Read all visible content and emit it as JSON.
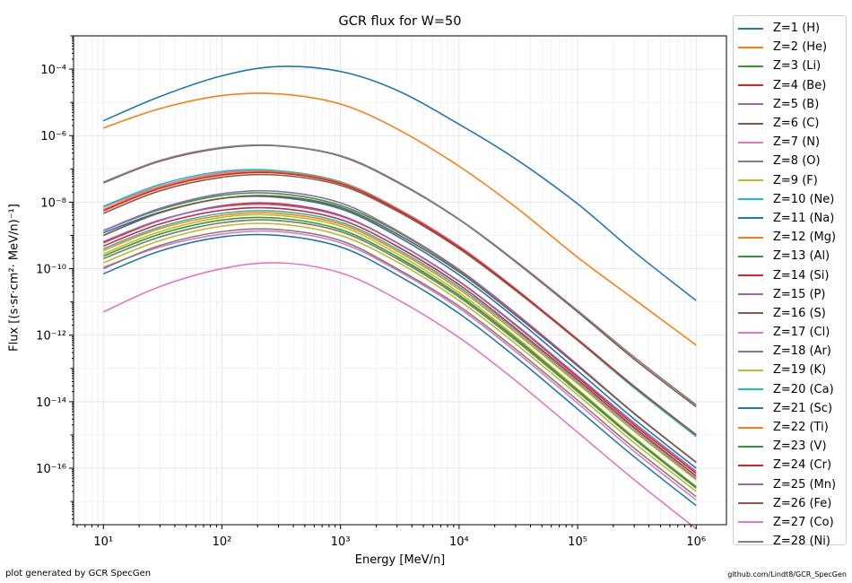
{
  "chart_data": {
    "type": "line",
    "title": "GCR flux for W=50",
    "xlabel": "Energy [MeV/n]",
    "ylabel": "Flux [(s·sr·cm²· MeV/n)⁻¹]",
    "x_scale": "log",
    "y_scale": "log",
    "xlim": [
      5.6,
      1800000
    ],
    "ylim": [
      2e-18,
      0.001
    ],
    "x_ticks": [
      {
        "value": 10,
        "label": "10¹"
      },
      {
        "value": 100,
        "label": "10²"
      },
      {
        "value": 1000,
        "label": "10³"
      },
      {
        "value": 10000,
        "label": "10⁴"
      },
      {
        "value": 100000,
        "label": "10⁵"
      },
      {
        "value": 1000000,
        "label": "10⁶"
      }
    ],
    "y_ticks": [
      {
        "value": 1e-16,
        "label": "10⁻¹⁶"
      },
      {
        "value": 1e-14,
        "label": "10⁻¹⁴"
      },
      {
        "value": 1e-12,
        "label": "10⁻¹²"
      },
      {
        "value": 1e-10,
        "label": "10⁻¹⁰"
      },
      {
        "value": 1e-08,
        "label": "10⁻⁸"
      },
      {
        "value": 1e-06,
        "label": "10⁻⁶"
      },
      {
        "value": 0.0001,
        "label": "10⁻⁴"
      }
    ],
    "grid": true,
    "legend_position": "outside-right",
    "x": [
      10,
      30,
      100,
      300,
      1000,
      3000,
      10000,
      30000,
      100000,
      300000,
      1000000
    ],
    "series": [
      {
        "name": "Z=1 (H)",
        "color": "#1f77b4",
        "values": [
          2.8e-06,
          1.5e-05,
          6.3e-05,
          0.00012,
          8.5e-05,
          2.3e-05,
          2.2e-06,
          2e-07,
          8.9e-09,
          3.2e-10,
          1.1e-11
        ]
      },
      {
        "name": "Z=2 (He)",
        "color": "#ff7f0e",
        "values": [
          1.7e-06,
          6.5e-06,
          1.6e-05,
          1.8e-05,
          8.9e-06,
          1.6e-06,
          1.2e-07,
          7.1e-09,
          2.2e-10,
          1.2e-11,
          5e-13
        ]
      },
      {
        "name": "Z=3 (Li)",
        "color": "#2ca02c",
        "values": [
          1.4e-09,
          6e-09,
          1.6e-08,
          1.8e-08,
          8e-09,
          1.3e-09,
          9e-11,
          4.5e-12,
          1.2e-13,
          4.5e-15,
          1.5e-16
        ]
      },
      {
        "name": "Z=4 (Be)",
        "color": "#d62728",
        "values": [
          6e-10,
          2.8e-09,
          7.8e-09,
          9e-09,
          4e-09,
          6e-10,
          4.1e-11,
          2e-12,
          5.4e-14,
          2e-15,
          7e-17
        ]
      },
      {
        "name": "Z=5 (B)",
        "color": "#9467bd",
        "values": [
          1.4e-09,
          6.5e-09,
          1.8e-08,
          2.1e-08,
          9.5e-09,
          1.4e-09,
          9.5e-11,
          4.6e-12,
          1.3e-13,
          4.5e-15,
          1.5e-16
        ]
      },
      {
        "name": "Z=6 (C)",
        "color": "#8c564b",
        "values": [
          3.8e-08,
          1.7e-07,
          4.2e-07,
          4.9e-07,
          2.4e-07,
          4e-08,
          3e-09,
          1.6e-10,
          5e-12,
          1.9e-13,
          7e-15
        ]
      },
      {
        "name": "Z=7 (N)",
        "color": "#e377c2",
        "values": [
          7e-09,
          3e-08,
          7.6e-08,
          8.7e-08,
          4.1e-08,
          6.6e-09,
          4.8e-10,
          2.5e-11,
          7.2e-13,
          2.7e-14,
          9e-16
        ]
      },
      {
        "name": "Z=8 (O)",
        "color": "#7f7f7f",
        "values": [
          4e-08,
          1.8e-07,
          4.4e-07,
          5e-07,
          2.5e-07,
          4.2e-08,
          3.1e-09,
          1.7e-10,
          5.5e-12,
          2.2e-13,
          8e-15
        ]
      },
      {
        "name": "Z=9 (F)",
        "color": "#bcbd22",
        "values": [
          2.8e-10,
          1.3e-09,
          3.5e-09,
          4e-09,
          1.9e-09,
          2.8e-10,
          1.9e-11,
          9e-13,
          2.4e-14,
          8.5e-16,
          2.8e-17
        ]
      },
      {
        "name": "Z=10 (Ne)",
        "color": "#17becf",
        "values": [
          7.5e-09,
          3.4e-08,
          8.4e-08,
          8.8e-08,
          4e-08,
          6.3e-09,
          4.5e-10,
          2.3e-11,
          7e-13,
          2.6e-14,
          9e-16
        ]
      },
      {
        "name": "Z=11 (Na)",
        "color": "#1f77b4",
        "values": [
          1.2e-09,
          5e-09,
          1.3e-08,
          1.4e-08,
          6.3e-09,
          9.5e-10,
          6.5e-11,
          3.2e-12,
          8.5e-14,
          3e-15,
          1e-16
        ]
      },
      {
        "name": "Z=12 (Mg)",
        "color": "#ff7f0e",
        "values": [
          6e-09,
          2.8e-08,
          7e-08,
          8e-08,
          3.8e-08,
          6.2e-09,
          4.5e-10,
          2.4e-11,
          7.5e-13,
          2.9e-14,
          1e-15
        ]
      },
      {
        "name": "Z=13 (Al)",
        "color": "#2ca02c",
        "values": [
          1e-09,
          4.8e-09,
          1.3e-08,
          1.5e-08,
          7e-09,
          1.1e-09,
          8e-11,
          4e-12,
          1.2e-13,
          4.4e-15,
          1.5e-16
        ]
      },
      {
        "name": "Z=14 (Si)",
        "color": "#d62728",
        "values": [
          5.5e-09,
          2.6e-08,
          6.5e-08,
          7.5e-08,
          3.6e-08,
          6e-09,
          4.4e-10,
          2.4e-11,
          7.5e-13,
          2.9e-14,
          1e-15
        ]
      },
      {
        "name": "Z=15 (P)",
        "color": "#9467bd",
        "values": [
          2e-10,
          9e-10,
          2.4e-09,
          2.8e-09,
          1.3e-09,
          2e-10,
          1.4e-11,
          7e-13,
          2e-14,
          7.5e-16,
          2.5e-17
        ]
      },
      {
        "name": "Z=16 (S)",
        "color": "#8c564b",
        "values": [
          1e-09,
          4.8e-09,
          1.3e-08,
          1.5e-08,
          7e-09,
          1.1e-09,
          8e-11,
          4e-12,
          1.2e-13,
          4.4e-15,
          1.5e-16
        ]
      },
      {
        "name": "Z=17 (Cl)",
        "color": "#e377c2",
        "values": [
          1.1e-10,
          4.5e-10,
          1.1e-09,
          1.3e-09,
          6e-10,
          9e-11,
          6.5e-12,
          3.2e-13,
          9e-15,
          3.2e-16,
          1.1e-17
        ]
      },
      {
        "name": "Z=18 (Ar)",
        "color": "#7f7f7f",
        "values": [
          2e-10,
          9e-10,
          2.4e-09,
          2.8e-09,
          1.3e-09,
          2e-10,
          1.4e-11,
          7e-13,
          2e-14,
          7.5e-16,
          2.5e-17
        ]
      },
      {
        "name": "Z=19 (K)",
        "color": "#bcbd22",
        "values": [
          1.5e-10,
          7e-10,
          1.9e-09,
          2.2e-09,
          1e-09,
          1.6e-10,
          1.1e-11,
          5.5e-13,
          1.6e-14,
          5.8e-16,
          2e-17
        ]
      },
      {
        "name": "Z=20 (Ca)",
        "color": "#17becf",
        "values": [
          4e-10,
          1.8e-09,
          4.6e-09,
          5.3e-09,
          2.5e-09,
          3.9e-10,
          2.8e-11,
          1.4e-12,
          4e-14,
          1.5e-15,
          5e-17
        ]
      },
      {
        "name": "Z=21 (Sc)",
        "color": "#1f77b4",
        "values": [
          7e-11,
          3.4e-10,
          9e-10,
          1e-09,
          4.5e-10,
          6.5e-11,
          4.5e-12,
          2.2e-13,
          6e-15,
          2.2e-16,
          7.5e-18
        ]
      },
      {
        "name": "Z=22 (Ti)",
        "color": "#ff7f0e",
        "values": [
          3.5e-10,
          1.6e-09,
          4e-09,
          4.6e-09,
          2.2e-09,
          3.4e-10,
          2.4e-11,
          1.2e-12,
          3.5e-14,
          1.3e-15,
          4.5e-17
        ]
      },
      {
        "name": "Z=23 (V)",
        "color": "#2ca02c",
        "values": [
          2.4e-10,
          1.1e-09,
          2.9e-09,
          3.3e-09,
          1.5e-09,
          2.3e-10,
          1.6e-11,
          8e-13,
          2.2e-14,
          8e-16,
          2.7e-17
        ]
      },
      {
        "name": "Z=24 (Cr)",
        "color": "#d62728",
        "values": [
          4.8e-10,
          2.2e-09,
          5.7e-09,
          6.5e-09,
          3e-09,
          4.7e-10,
          3.3e-11,
          1.6e-12,
          4.6e-14,
          1.7e-15,
          5.8e-17
        ]
      },
      {
        "name": "Z=25 (Mn)",
        "color": "#9467bd",
        "values": [
          6.5e-10,
          2.9e-09,
          7.3e-09,
          8.2e-09,
          3.8e-09,
          6e-10,
          4.2e-11,
          2.1e-12,
          6e-14,
          2.3e-15,
          8e-17
        ]
      },
      {
        "name": "Z=26 (Fe)",
        "color": "#8c564b",
        "values": [
          4.6e-09,
          2.2e-08,
          5.6e-08,
          6.5e-08,
          3.2e-08,
          5.4e-09,
          4e-10,
          2.2e-11,
          7e-13,
          2.8e-14,
          1e-15
        ]
      },
      {
        "name": "Z=27 (Co)",
        "color": "#e377c2",
        "values": [
          5e-12,
          2.9e-11,
          1e-10,
          1.5e-10,
          7.5e-11,
          1.2e-11,
          8.5e-13,
          4.3e-14,
          1.2e-15,
          4.5e-17,
          1.5e-18
        ]
      },
      {
        "name": "Z=28 (Ni)",
        "color": "#7f7f7f",
        "values": [
          1e-10,
          5e-10,
          1.3e-09,
          1.5e-09,
          7e-10,
          1e-10,
          7.5e-12,
          3.8e-13,
          1.1e-14,
          4e-16,
          1.4e-17
        ]
      }
    ]
  },
  "footer": {
    "left_text": "plot generated by GCR SpecGen",
    "right_text": "github.com/Lindt8/GCR_SpecGen"
  }
}
